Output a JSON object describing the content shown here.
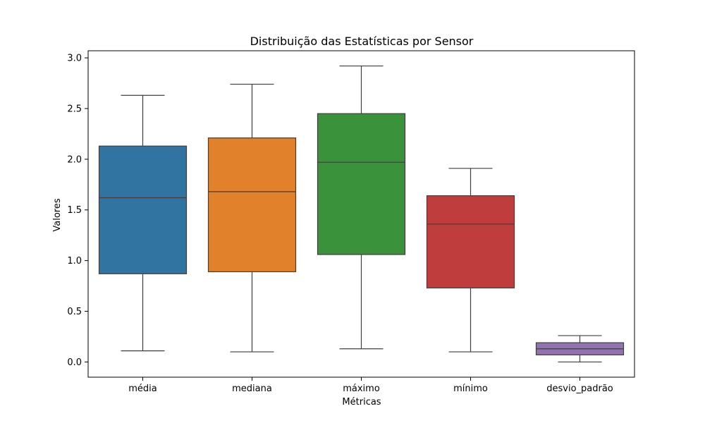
{
  "chart_data": {
    "type": "box",
    "title": "Distribuição das Estatísticas por Sensor",
    "xlabel": "Métricas",
    "ylabel": "Valores",
    "ylim": [
      -0.15,
      3.07
    ],
    "yticks": [
      "0.0",
      "0.5",
      "1.0",
      "1.5",
      "2.0",
      "2.5",
      "3.0"
    ],
    "grid": false,
    "legend": "none",
    "categories": [
      "média",
      "mediana",
      "máximo",
      "mínimo",
      "desvio_padrão"
    ],
    "boxes": [
      {
        "category": "média",
        "whisker_low": 0.11,
        "q1": 0.87,
        "median": 1.62,
        "q3": 2.13,
        "whisker_high": 2.63,
        "color": "#3274a1"
      },
      {
        "category": "mediana",
        "whisker_low": 0.1,
        "q1": 0.89,
        "median": 1.68,
        "q3": 2.21,
        "whisker_high": 2.74,
        "color": "#e1812c"
      },
      {
        "category": "máximo",
        "whisker_low": 0.13,
        "q1": 1.06,
        "median": 1.97,
        "q3": 2.45,
        "whisker_high": 2.92,
        "color": "#3a923a"
      },
      {
        "category": "mínimo",
        "whisker_low": 0.1,
        "q1": 0.73,
        "median": 1.36,
        "q3": 1.64,
        "whisker_high": 1.91,
        "color": "#c03d3e"
      },
      {
        "category": "desvio_padrão",
        "whisker_low": 0.0,
        "q1": 0.07,
        "median": 0.13,
        "q3": 0.19,
        "whisker_high": 0.26,
        "color": "#9372b2"
      }
    ]
  }
}
